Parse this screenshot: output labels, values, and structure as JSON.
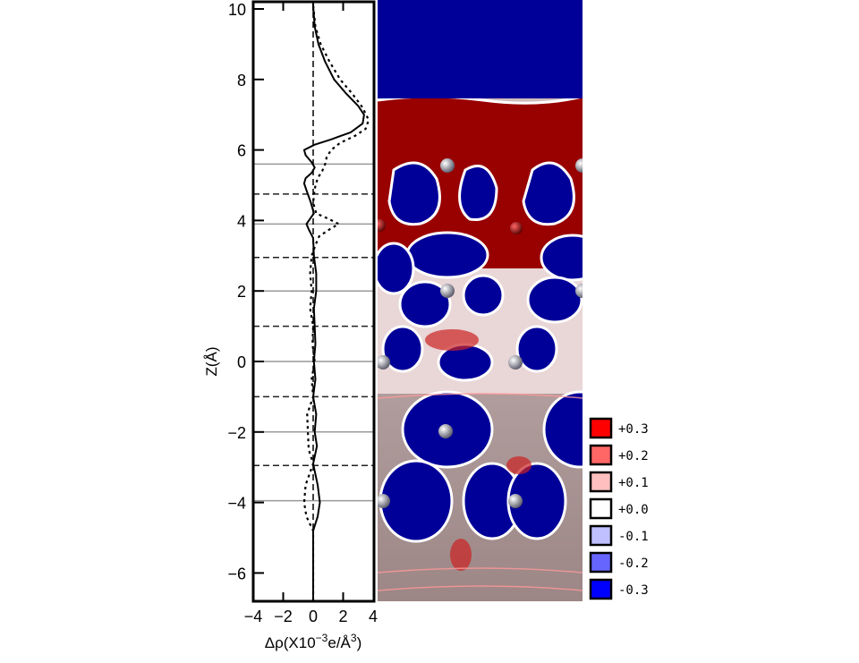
{
  "chart_data": {
    "type": "line",
    "title": "",
    "xlabel_parts": {
      "pre": "Δρ(X10",
      "sup1": "−3",
      "mid": "e/Å",
      "sup2": "3",
      "post": ")"
    },
    "ylabel": "Z(Å)",
    "xlim": [
      -4,
      4
    ],
    "ylim": [
      -6.8,
      10.2
    ],
    "xticks": [
      -4,
      -2,
      0,
      2,
      4
    ],
    "xtick_labels": [
      "−4",
      "−2",
      "0",
      "2",
      "4"
    ],
    "yticks": [
      -6,
      -4,
      -2,
      0,
      2,
      4,
      6,
      8,
      10
    ],
    "ytick_labels": [
      "−6",
      "−4",
      "−2",
      "0",
      "2",
      "4",
      "6",
      "8",
      "10"
    ],
    "reference_lines": {
      "solid_z": [
        5.6,
        3.9,
        2.0,
        0.0,
        -2.0,
        -3.95
      ],
      "dashed_z": [
        4.75,
        2.95,
        1.0,
        -1.0,
        -2.95
      ],
      "dashed_x": [
        0
      ]
    },
    "series": [
      {
        "style": "solid",
        "points": [
          [
            0,
            10.1
          ],
          [
            0.1,
            9.5
          ],
          [
            0.35,
            9.0
          ],
          [
            0.8,
            8.5
          ],
          [
            1.4,
            8.0
          ],
          [
            2.2,
            7.6
          ],
          [
            3.0,
            7.25
          ],
          [
            3.4,
            7.0
          ],
          [
            3.3,
            6.75
          ],
          [
            2.5,
            6.5
          ],
          [
            1.2,
            6.3
          ],
          [
            0.1,
            6.15
          ],
          [
            -0.6,
            6.0
          ],
          [
            -0.5,
            5.85
          ],
          [
            -0.1,
            5.65
          ],
          [
            0.1,
            5.5
          ],
          [
            -0.1,
            5.35
          ],
          [
            -0.5,
            5.2
          ],
          [
            -0.6,
            5.05
          ],
          [
            -0.4,
            4.8
          ],
          [
            -0.15,
            4.5
          ],
          [
            0.05,
            4.2
          ],
          [
            -0.2,
            4.05
          ],
          [
            -0.45,
            3.9
          ],
          [
            -0.3,
            3.75
          ],
          [
            0,
            3.5
          ],
          [
            0.05,
            3.0
          ],
          [
            0.2,
            2.5
          ],
          [
            0.2,
            2.0
          ],
          [
            0.05,
            1.5
          ],
          [
            0.1,
            1.0
          ],
          [
            0.15,
            0.5
          ],
          [
            0.05,
            0.0
          ],
          [
            0.15,
            -0.5
          ],
          [
            0,
            -1.0
          ],
          [
            0.2,
            -1.5
          ],
          [
            0.1,
            -2.0
          ],
          [
            0.25,
            -2.4
          ],
          [
            0,
            -2.9
          ],
          [
            0.3,
            -3.5
          ],
          [
            0.45,
            -4.0
          ],
          [
            0.3,
            -4.4
          ],
          [
            0,
            -4.8
          ],
          [
            0,
            -6.8
          ]
        ]
      },
      {
        "style": "dotted",
        "points": [
          [
            0,
            10.1
          ],
          [
            0.15,
            9.5
          ],
          [
            0.5,
            9.0
          ],
          [
            1.1,
            8.5
          ],
          [
            1.8,
            8.0
          ],
          [
            2.6,
            7.6
          ],
          [
            3.3,
            7.2
          ],
          [
            3.7,
            6.85
          ],
          [
            3.5,
            6.6
          ],
          [
            2.8,
            6.4
          ],
          [
            1.8,
            6.2
          ],
          [
            1.2,
            6.0
          ],
          [
            0.9,
            5.8
          ],
          [
            0.8,
            5.6
          ],
          [
            0.6,
            5.4
          ],
          [
            0.3,
            5.2
          ],
          [
            0.1,
            4.9
          ],
          [
            0,
            4.5
          ],
          [
            0.2,
            4.2
          ],
          [
            1.0,
            4.05
          ],
          [
            1.7,
            3.9
          ],
          [
            1.1,
            3.75
          ],
          [
            0.4,
            3.55
          ],
          [
            0.15,
            3.3
          ],
          [
            -0.1,
            3.0
          ],
          [
            -0.2,
            2.5
          ],
          [
            -0.1,
            2.0
          ],
          [
            -0.2,
            1.5
          ],
          [
            0,
            1.0
          ],
          [
            -0.05,
            0.5
          ],
          [
            0.1,
            0.0
          ],
          [
            -0.1,
            -0.5
          ],
          [
            0,
            -1.0
          ],
          [
            -0.4,
            -1.5
          ],
          [
            -0.35,
            -2.0
          ],
          [
            -0.3,
            -2.5
          ],
          [
            0,
            -2.9
          ],
          [
            -0.5,
            -3.5
          ],
          [
            -0.6,
            -4.0
          ],
          [
            -0.45,
            -4.4
          ],
          [
            0,
            -4.8
          ],
          [
            0,
            -6.8
          ]
        ]
      }
    ]
  },
  "colorbar": {
    "entries": [
      {
        "label": "+0.3",
        "color": "#ff0000"
      },
      {
        "label": "+0.2",
        "color": "#ff6666"
      },
      {
        "label": "+0.1",
        "color": "#ffbfbf"
      },
      {
        "label": "+0.0",
        "color": "#ffffff"
      },
      {
        "label": "-0.1",
        "color": "#bfbfff"
      },
      {
        "label": "-0.2",
        "color": "#6666ff"
      },
      {
        "label": "-0.3",
        "color": "#0000ff"
      }
    ]
  }
}
